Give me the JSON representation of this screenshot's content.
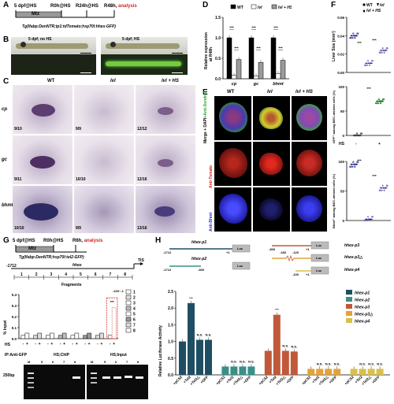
{
  "panels": {
    "A": {
      "label": "A",
      "t1": "5 dpf@HS",
      "t2": "R0h@HS",
      "t3": "R24h@HS",
      "t4": "R48h,",
      "t4b": "analysis",
      "box": "Mtz",
      "genotype": "Tg(lfabp:DenNTR;tp1:tdTomato;hsp70l:hhex-GFP)"
    },
    "B": {
      "label": "B",
      "img1": "5 dpf; no HS",
      "img2": "5 dpf; HS"
    },
    "C": {
      "label": "C",
      "cols": [
        "WT",
        "lvl",
        "lvl + HS"
      ],
      "rows": [
        "cp",
        "gc",
        "bhmt"
      ],
      "counts": [
        [
          "9/10",
          "9/9",
          "12/12"
        ],
        [
          "9/11",
          "10/10",
          "12/16"
        ],
        [
          "10/10",
          "9/9",
          "13/16"
        ]
      ]
    },
    "D": {
      "label": "D",
      "ylabel": "Relative expression",
      "ylabel2": "at R48h",
      "sig": "***"
    },
    "E": {
      "label": "E",
      "cols": [
        "WT",
        "lvl",
        "lvl + HS"
      ],
      "rows": [
        "Merge + DAPI",
        "+Anti-Dendra2",
        "Anti-Tomato",
        "Anti-Bhmt"
      ]
    },
    "F": {
      "label": "F",
      "y1": "Liver Size (mm²)",
      "y2": "GFP⁺ among BEC-derived cells (%)",
      "y3": "Bhmt⁺ among BEC-derived cells (%)",
      "sig": "***",
      "hs": "HS",
      "minus": "-",
      "plus": "+"
    },
    "G": {
      "label": "G",
      "t1": "5 dpf@HS",
      "t2": "R0h@HS",
      "t3": "R6h,",
      "t3b": "analysis",
      "box": "Mtz",
      "genotype": "Tg(lfabp:DenNTR;hsp70l:tel2-GFP)",
      "prom_start": "-1712",
      "gene": "hhex",
      "tis": "TIS",
      "fragments_label": "Fragments",
      "frag_nums": [
        "1",
        "2",
        "3",
        "4",
        "5",
        "6",
        "7",
        "8"
      ],
      "range_label": "-220~-1",
      "ylabel": "% Input",
      "hs": "HS",
      "chip_ip": "IP:Anti-GFP",
      "chip_hs": "HS;ChIP",
      "input_hs": "HS;Input",
      "marker": "M",
      "bp": "250bp",
      "lanes": [
        "5",
        "6",
        "7",
        "8"
      ],
      "legend": [
        "1",
        "2",
        "3",
        "4",
        "5",
        "6",
        "7",
        "8"
      ],
      "sig": "***"
    },
    "H": {
      "label": "H",
      "constructs": [
        "hhex-p1",
        "hhex-p2",
        "hhex-p3",
        "hhex-p3△",
        "hhex-p4"
      ],
      "luc": "Luc",
      "ylabel": "Relative Luciferase Activity",
      "xlabels": [
        "pCS2",
        "Tel2",
        "Tel2△",
        "GFP"
      ],
      "ns": "N.S.",
      "sig": "***",
      "p1_start": "-1712",
      "p1_end": "+1",
      "p2_start": "-1712",
      "p2_end": "-300",
      "p3_start": "-300",
      "p3_end": "+1",
      "p3d_a": "-180",
      "p3d_b": "-120",
      "p4_start": "-100",
      "p4_end": "+1"
    }
  },
  "chart_data": [
    {
      "panel": "D",
      "type": "bar",
      "categories": [
        "cp",
        "gc",
        "bhmt"
      ],
      "series": [
        {
          "name": "WT",
          "values": [
            1.0,
            1.0,
            1.0
          ],
          "color": "#000000"
        },
        {
          "name": "lvl",
          "values": [
            0.08,
            0.07,
            0.13
          ],
          "color": "#ffffff"
        },
        {
          "name": "lvl + HS",
          "values": [
            0.47,
            0.4,
            0.45
          ],
          "color": "#9b9b9b"
        }
      ],
      "ylim": [
        0,
        1.5
      ],
      "yticks": [
        0,
        0.5,
        1.0,
        1.5
      ]
    },
    {
      "panel": "F-top",
      "type": "scatter",
      "categories": [
        "WT",
        "lvl",
        "lvl + HS"
      ],
      "values": [
        0.04,
        0.01,
        0.024
      ],
      "ylim": [
        0,
        0.06
      ],
      "yticks": [
        0,
        0.02,
        0.04,
        0.06
      ]
    },
    {
      "panel": "F-mid",
      "type": "scatter",
      "categories": [
        "HS -",
        "HS +"
      ],
      "values": [
        0,
        70
      ],
      "ylim": [
        0,
        100
      ],
      "yticks": [
        0,
        50,
        100
      ]
    },
    {
      "panel": "F-bottom",
      "type": "scatter",
      "categories": [
        "WT",
        "lvl",
        "lvl + HS"
      ],
      "values": [
        95,
        2,
        55
      ],
      "ylim": [
        0,
        100
      ],
      "yticks": [
        0,
        50,
        100
      ]
    },
    {
      "panel": "G",
      "type": "bar",
      "categories": [
        "1",
        "2",
        "3",
        "4",
        "5",
        "6",
        "7",
        "8"
      ],
      "series": [
        {
          "name": "HS -",
          "values": [
            0.03,
            0.03,
            0.03,
            0.03,
            0.03,
            0.03,
            0.03,
            0.03
          ]
        },
        {
          "name": "HS +",
          "values": [
            0.05,
            0.05,
            0.05,
            0.05,
            0.05,
            0.05,
            0.05,
            0.28
          ]
        }
      ],
      "ylim": [
        0,
        0.4
      ],
      "yticks": [
        0,
        0.1,
        0.2,
        0.3,
        0.4
      ]
    },
    {
      "panel": "H",
      "type": "bar",
      "groups": [
        "hhex-p1",
        "hhex-p2",
        "hhex-p3",
        "hhex-p3△",
        "hhex-p4"
      ],
      "categories": [
        "pCS2",
        "Tel2",
        "Tel2△",
        "GFP"
      ],
      "values": [
        [
          1.0,
          2.15,
          1.05,
          1.05
        ],
        [
          0.25,
          0.25,
          0.25,
          0.25
        ],
        [
          0.72,
          1.8,
          0.72,
          0.7
        ],
        [
          0.18,
          0.18,
          0.18,
          0.18
        ],
        [
          0.18,
          0.18,
          0.18,
          0.18
        ]
      ],
      "colors": [
        "#1f4e63",
        "#3a8f88",
        "#c0583a",
        "#e3a23a",
        "#d9c04a"
      ],
      "ylim": [
        0,
        2.5
      ],
      "yticks": [
        0,
        0.5,
        1.0,
        1.5,
        2.0,
        2.5
      ]
    }
  ]
}
